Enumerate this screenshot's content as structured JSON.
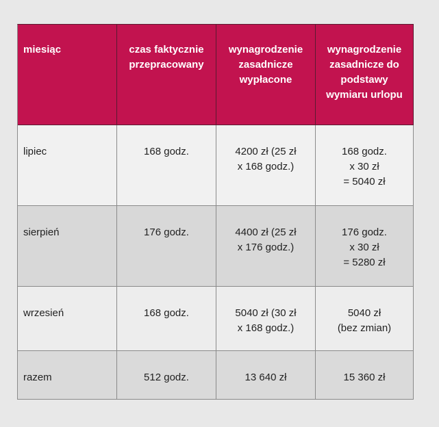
{
  "table": {
    "header": [
      [
        "miesiąc"
      ],
      [
        "czas faktycznie",
        "przepracowany"
      ],
      [
        "wynagrodzenie",
        "zasadnicze",
        "wypłacone"
      ],
      [
        "wynagrodzenie",
        "zasadnicze do",
        "podstawy",
        "wymiaru urlopu"
      ]
    ],
    "rows": [
      [
        [
          "lipiec"
        ],
        [
          "168 godz."
        ],
        [
          "4200 zł (25 zł",
          "x 168 godz.)"
        ],
        [
          "168 godz.",
          "x 30 zł",
          "= 5040 zł"
        ]
      ],
      [
        [
          "sierpień"
        ],
        [
          "176 godz."
        ],
        [
          "4400 zł (25 zł",
          "x 176 godz.)"
        ],
        [
          "176 godz.",
          "x 30 zł",
          "= 5280 zł"
        ]
      ],
      [
        [
          "wrzesień"
        ],
        [
          "168 godz."
        ],
        [
          "5040 zł (30 zł",
          "x 168 godz.)"
        ],
        [
          "5040 zł",
          "(bez zmian)"
        ]
      ],
      [
        [
          "razem"
        ],
        [
          "512 godz."
        ],
        [
          "13 640 zł"
        ],
        [
          "15 360 zł"
        ]
      ]
    ]
  }
}
